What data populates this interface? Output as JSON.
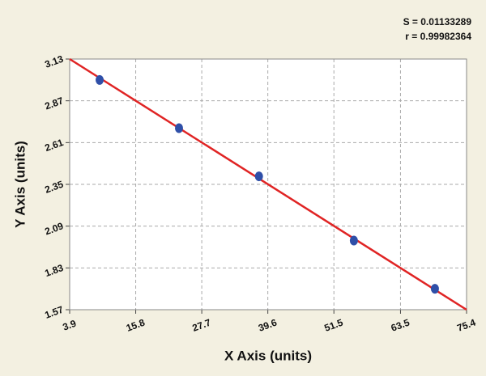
{
  "chart_data": {
    "type": "scatter",
    "annotations": [
      "S = 0.01133289",
      "r = 0.99982364"
    ],
    "x_label": "X Axis (units)",
    "y_label": "Y Axis (units)",
    "x": [
      9.3,
      23.6,
      38.0,
      55.1,
      69.7
    ],
    "values": [
      3.0,
      2.7,
      2.4,
      2.0,
      1.7
    ],
    "color": "#2f4fa8",
    "fit": {
      "color": "#e02424",
      "x": [
        3.9,
        75.4
      ],
      "values": [
        3.13,
        1.57
      ]
    },
    "xlim": [
      3.9,
      75.4
    ],
    "xticks": [
      3.9,
      15.8,
      27.7,
      39.6,
      51.5,
      63.5,
      75.4
    ],
    "ylim": [
      1.57,
      3.13
    ],
    "yticks": [
      1.57,
      1.83,
      2.09,
      2.35,
      2.61,
      2.87,
      3.13
    ],
    "grid": true
  }
}
